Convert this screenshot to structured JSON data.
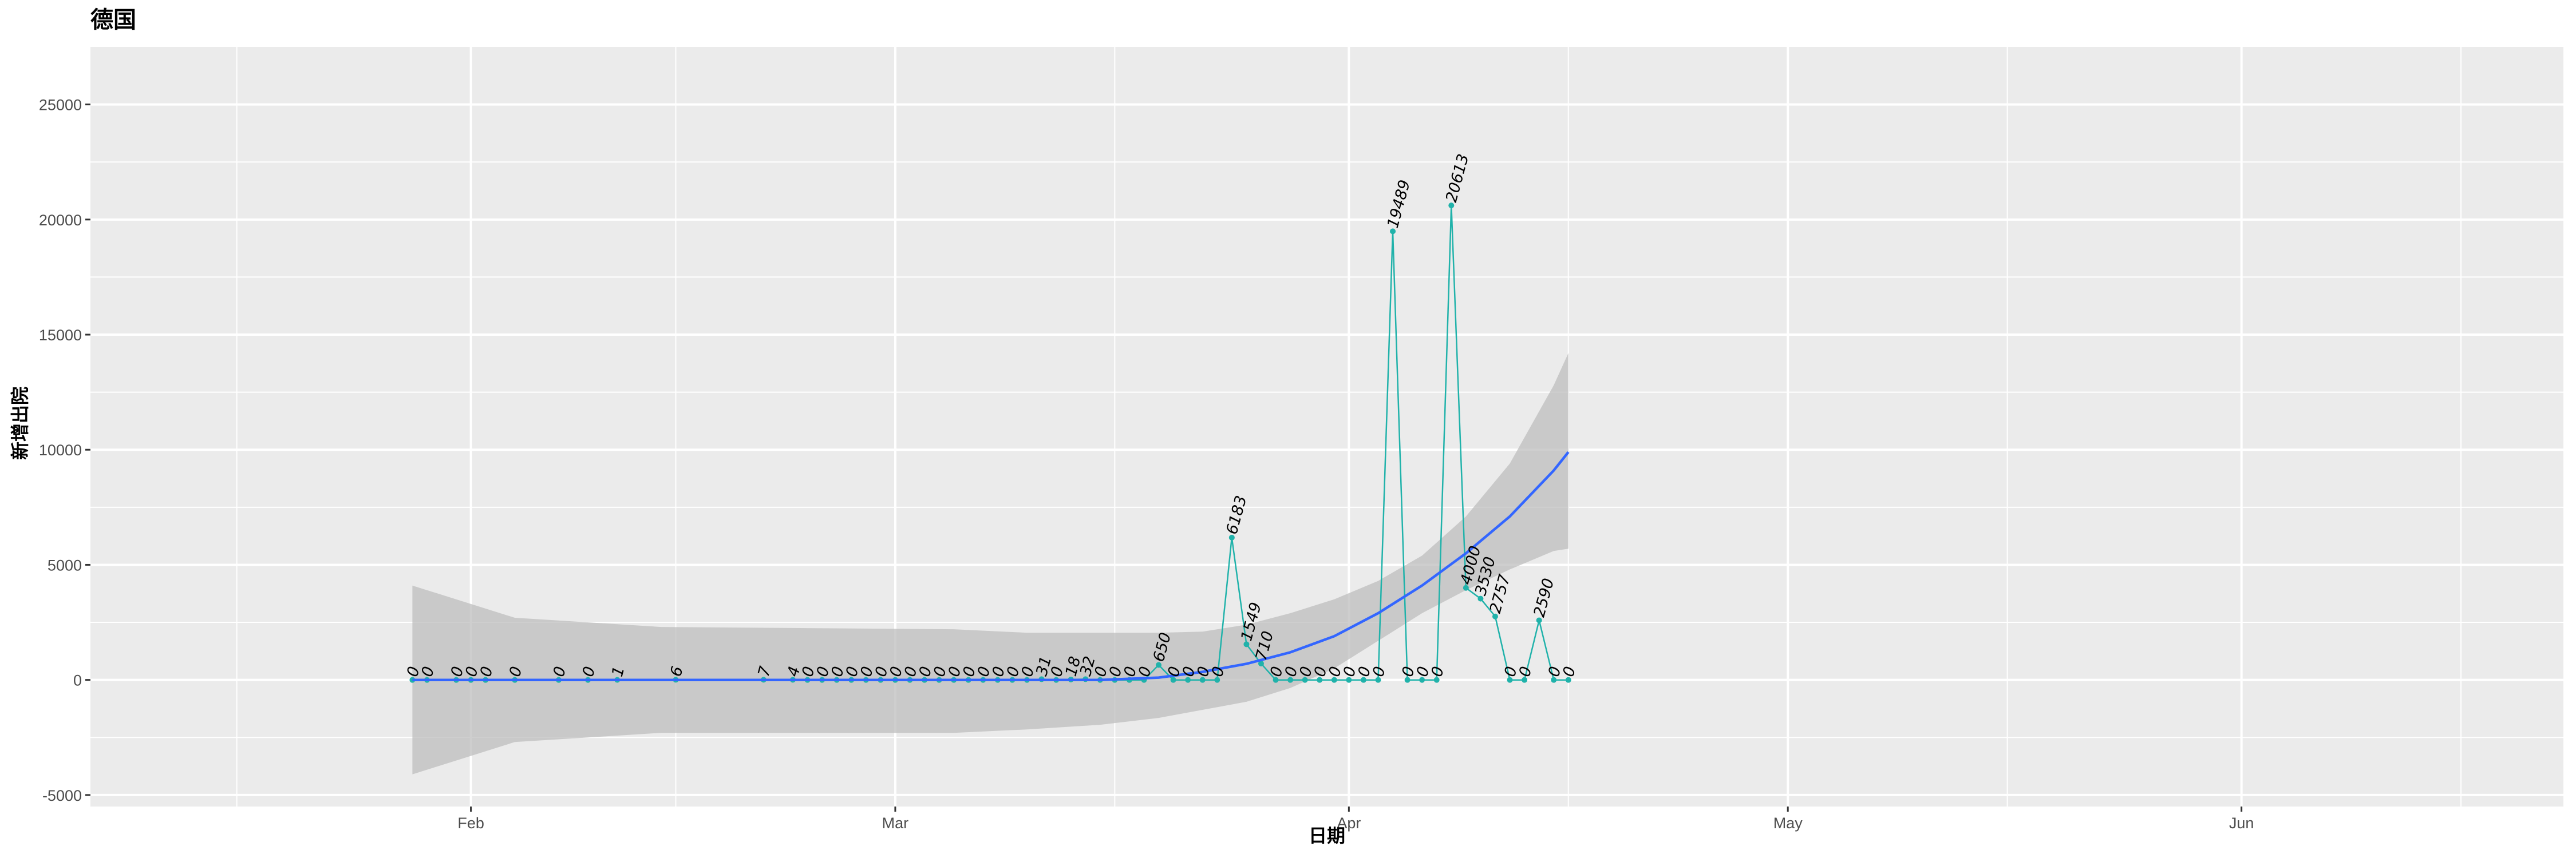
{
  "chart_data": {
    "type": "line",
    "title": "德国",
    "xlabel": "日期",
    "ylabel": "新增出院",
    "x_axis": {
      "type": "date",
      "range": [
        "2020-01-06",
        "2020-06-23"
      ],
      "ticks": [
        {
          "date": "2020-02-01",
          "label": "Feb"
        },
        {
          "date": "2020-03-01",
          "label": "Mar"
        },
        {
          "date": "2020-04-01",
          "label": "Apr"
        },
        {
          "date": "2020-05-01",
          "label": "May"
        },
        {
          "date": "2020-06-01",
          "label": "Jun"
        }
      ],
      "minor_ticks": [
        "2020-01-16",
        "2020-02-15",
        "2020-03-16",
        "2020-04-16",
        "2020-05-16",
        "2020-06-16"
      ]
    },
    "y_axis": {
      "range": [
        -5500,
        27500
      ],
      "ticks": [
        -5000,
        0,
        5000,
        10000,
        15000,
        20000,
        25000
      ],
      "minor_ticks": [
        -2500,
        2500,
        7500,
        12500,
        17500,
        22500
      ]
    },
    "grid": true,
    "legend": "none",
    "colors": {
      "panel_background": "#ebebeb",
      "grid": "#ffffff",
      "series": "#20b2aa",
      "smooth": "#3366ff",
      "ribbon": "#bdbdbd"
    },
    "series": [
      {
        "x": [
          "2020-01-28",
          "2020-01-29",
          "2020-01-31",
          "2020-02-01",
          "2020-02-02",
          "2020-02-04",
          "2020-02-07",
          "2020-02-09",
          "2020-02-11",
          "2020-02-15",
          "2020-02-21",
          "2020-02-23",
          "2020-02-24",
          "2020-02-25",
          "2020-02-26",
          "2020-02-27",
          "2020-02-28",
          "2020-02-29",
          "2020-03-01",
          "2020-03-02",
          "2020-03-03",
          "2020-03-04",
          "2020-03-05",
          "2020-03-06",
          "2020-03-07",
          "2020-03-08",
          "2020-03-09",
          "2020-03-10",
          "2020-03-11",
          "2020-03-12",
          "2020-03-13",
          "2020-03-14",
          "2020-03-15",
          "2020-03-16",
          "2020-03-17",
          "2020-03-18",
          "2020-03-19",
          "2020-03-20",
          "2020-03-21",
          "2020-03-22",
          "2020-03-23",
          "2020-03-24",
          "2020-03-25",
          "2020-03-26",
          "2020-03-27",
          "2020-03-28",
          "2020-03-29",
          "2020-03-30",
          "2020-03-31",
          "2020-04-01",
          "2020-04-02",
          "2020-04-03",
          "2020-04-04",
          "2020-04-05",
          "2020-04-06",
          "2020-04-07",
          "2020-04-08",
          "2020-04-09",
          "2020-04-10",
          "2020-04-11",
          "2020-04-12",
          "2020-04-13",
          "2020-04-14",
          "2020-04-15",
          "2020-04-16"
        ],
        "values": [
          0,
          0,
          0,
          0,
          0,
          0,
          0,
          0,
          1,
          6,
          7,
          4,
          0,
          0,
          0,
          0,
          0,
          0,
          0,
          0,
          0,
          0,
          0,
          0,
          0,
          0,
          0,
          0,
          31,
          0,
          18,
          32,
          0,
          0,
          0,
          0,
          650,
          0,
          0,
          0,
          0,
          6183,
          1549,
          710,
          0,
          0,
          0,
          0,
          0,
          0,
          0,
          0,
          19489,
          0,
          0,
          0,
          20613,
          4000,
          3530,
          2757,
          0,
          0,
          2590,
          0,
          0
        ],
        "labels": [
          "0",
          "0",
          "0",
          "0",
          "0",
          "0",
          "0",
          "0",
          "1",
          "6",
          "7",
          "4",
          "0",
          "0",
          "0",
          "0",
          "0",
          "0",
          "0",
          "0",
          "0",
          "0",
          "0",
          "0",
          "0",
          "0",
          "0",
          "0",
          "31",
          "0",
          "18",
          "32",
          "0",
          "0",
          "0",
          "0",
          "650",
          "0",
          "0",
          "0",
          "0",
          "6183",
          "1549",
          "710",
          "0",
          "0",
          "0",
          "0",
          "0",
          "0",
          "0",
          "0",
          "19489",
          "0",
          "0",
          "0",
          "20613",
          "4000",
          "3530",
          "2757",
          "0",
          "0",
          "2590",
          "0",
          "0"
        ]
      }
    ],
    "smooth": {
      "x": [
        "2020-01-28",
        "2020-02-04",
        "2020-02-14",
        "2020-02-24",
        "2020-03-05",
        "2020-03-10",
        "2020-03-15",
        "2020-03-19",
        "2020-03-22",
        "2020-03-25",
        "2020-03-28",
        "2020-03-31",
        "2020-04-03",
        "2020-04-06",
        "2020-04-09",
        "2020-04-12",
        "2020-04-15",
        "2020-04-16"
      ],
      "fit": [
        0,
        0,
        0,
        0,
        0,
        0,
        0,
        100,
        350,
        700,
        1200,
        1900,
        2900,
        4100,
        5500,
        7100,
        9100,
        9900
      ],
      "lower": [
        -4100,
        -2700,
        -2300,
        -2300,
        -2300,
        -2150,
        -1950,
        -1650,
        -1300,
        -950,
        -350,
        500,
        1700,
        2900,
        3900,
        4800,
        5600,
        5700
      ],
      "upper": [
        4100,
        2700,
        2300,
        2250,
        2200,
        2050,
        2050,
        2050,
        2100,
        2400,
        2900,
        3500,
        4300,
        5400,
        7100,
        9400,
        12800,
        14200
      ]
    }
  }
}
